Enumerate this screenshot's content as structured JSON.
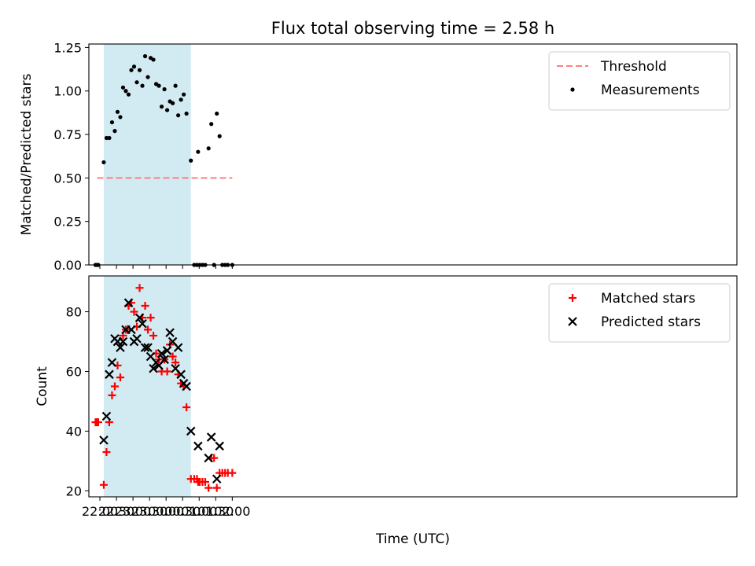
{
  "chart_data": {
    "title": "Flux total observing time = 2.58 h",
    "xlabel": "Time (UTC)",
    "x_tick_labels": [
      "22:00",
      "22:30",
      "23:00",
      "23:30",
      "00:00",
      "00:30",
      "01:00",
      "01:30",
      "02:00"
    ],
    "highlight_span": [
      "22:07",
      "00:45"
    ],
    "highlight_color": "#add8e6",
    "panels": [
      {
        "type": "scatter",
        "ylabel": "Matched/Predicted stars",
        "ylim": [
          0,
          1.27
        ],
        "y_tick_labels": [
          "0.00",
          "0.25",
          "0.50",
          "0.75",
          "1.00",
          "1.25"
        ],
        "legend_position": "upper right",
        "threshold": {
          "name": "Threshold",
          "value": 0.5,
          "x_range": [
            "21:55",
            "02:00"
          ],
          "color": "#ff7f7f",
          "style": "dashed"
        },
        "series": [
          {
            "name": "Measurements",
            "marker": "dot",
            "color": "#000000",
            "points": [
              [
                "21:52",
                0
              ],
              [
                "21:55",
                0
              ],
              [
                "21:57",
                0
              ],
              [
                "22:07",
                0.59
              ],
              [
                "22:12",
                0.73
              ],
              [
                "22:17",
                0.73
              ],
              [
                "22:22",
                0.82
              ],
              [
                "22:27",
                0.77
              ],
              [
                "22:32",
                0.88
              ],
              [
                "22:37",
                0.85
              ],
              [
                "22:42",
                1.02
              ],
              [
                "22:47",
                1.0
              ],
              [
                "22:52",
                0.98
              ],
              [
                "22:57",
                1.12
              ],
              [
                "23:02",
                1.14
              ],
              [
                "23:07",
                1.05
              ],
              [
                "23:12",
                1.12
              ],
              [
                "23:17",
                1.03
              ],
              [
                "23:22",
                1.2
              ],
              [
                "23:27",
                1.08
              ],
              [
                "23:32",
                1.19
              ],
              [
                "23:37",
                1.18
              ],
              [
                "23:42",
                1.04
              ],
              [
                "23:47",
                1.03
              ],
              [
                "23:52",
                0.91
              ],
              [
                "23:57",
                1.01
              ],
              [
                "00:02",
                0.89
              ],
              [
                "00:07",
                0.94
              ],
              [
                "00:12",
                0.93
              ],
              [
                "00:17",
                1.03
              ],
              [
                "00:22",
                0.86
              ],
              [
                "00:27",
                0.95
              ],
              [
                "00:32",
                0.98
              ],
              [
                "00:37",
                0.87
              ],
              [
                "00:45",
                0.6
              ],
              [
                "00:51",
                0
              ],
              [
                "00:56",
                0
              ],
              [
                "00:58",
                0.65
              ],
              [
                "01:01",
                0
              ],
              [
                "01:06",
                0
              ],
              [
                "01:11",
                0
              ],
              [
                "01:17",
                0.67
              ],
              [
                "01:22",
                0.81
              ],
              [
                "01:27",
                0
              ],
              [
                "01:32",
                0.87
              ],
              [
                "01:37",
                0.74
              ],
              [
                "01:42",
                0
              ],
              [
                "01:47",
                0
              ],
              [
                "01:52",
                0
              ],
              [
                "02:00",
                0
              ]
            ]
          }
        ]
      },
      {
        "type": "scatter",
        "ylabel": "Count",
        "ylim": [
          18,
          92
        ],
        "y_tick_labels": [
          "20",
          "40",
          "60",
          "80"
        ],
        "legend_position": "upper right",
        "series": [
          {
            "name": "Matched stars",
            "marker": "plus",
            "color": "#ff0000",
            "points": [
              [
                "21:52",
                43
              ],
              [
                "21:55",
                43
              ],
              [
                "21:57",
                43
              ],
              [
                "22:07",
                22
              ],
              [
                "22:12",
                33
              ],
              [
                "22:17",
                43
              ],
              [
                "22:22",
                52
              ],
              [
                "22:27",
                55
              ],
              [
                "22:32",
                62
              ],
              [
                "22:37",
                58
              ],
              [
                "22:42",
                72
              ],
              [
                "22:47",
                74
              ],
              [
                "22:52",
                82
              ],
              [
                "22:57",
                83
              ],
              [
                "23:02",
                80
              ],
              [
                "23:07",
                75
              ],
              [
                "23:12",
                88
              ],
              [
                "23:17",
                78
              ],
              [
                "23:22",
                82
              ],
              [
                "23:27",
                74
              ],
              [
                "23:32",
                78
              ],
              [
                "23:37",
                72
              ],
              [
                "23:42",
                66
              ],
              [
                "23:47",
                64
              ],
              [
                "23:52",
                60
              ],
              [
                "23:57",
                64
              ],
              [
                "00:02",
                60
              ],
              [
                "00:07",
                69
              ],
              [
                "00:12",
                65
              ],
              [
                "00:17",
                63
              ],
              [
                "00:22",
                59
              ],
              [
                "00:27",
                56
              ],
              [
                "00:32",
                55
              ],
              [
                "00:37",
                48
              ],
              [
                "00:45",
                24
              ],
              [
                "00:51",
                24
              ],
              [
                "00:56",
                24
              ],
              [
                "00:58",
                23
              ],
              [
                "01:01",
                23
              ],
              [
                "01:06",
                23
              ],
              [
                "01:11",
                23
              ],
              [
                "01:17",
                21
              ],
              [
                "01:22",
                31
              ],
              [
                "01:27",
                31
              ],
              [
                "01:32",
                21
              ],
              [
                "01:37",
                26
              ],
              [
                "01:42",
                26
              ],
              [
                "01:47",
                26
              ],
              [
                "01:52",
                26
              ],
              [
                "02:00",
                26
              ]
            ]
          },
          {
            "name": "Predicted stars",
            "marker": "x",
            "color": "#000000",
            "points": [
              [
                "22:07",
                37
              ],
              [
                "22:12",
                45
              ],
              [
                "22:17",
                59
              ],
              [
                "22:22",
                63
              ],
              [
                "22:27",
                71
              ],
              [
                "22:32",
                70
              ],
              [
                "22:37",
                68
              ],
              [
                "22:42",
                70
              ],
              [
                "22:47",
                74
              ],
              [
                "22:52",
                83
              ],
              [
                "22:57",
                74
              ],
              [
                "23:02",
                70
              ],
              [
                "23:07",
                71
              ],
              [
                "23:12",
                78
              ],
              [
                "23:17",
                76
              ],
              [
                "23:22",
                68
              ],
              [
                "23:27",
                68
              ],
              [
                "23:32",
                65
              ],
              [
                "23:37",
                61
              ],
              [
                "23:42",
                63
              ],
              [
                "23:47",
                62
              ],
              [
                "23:52",
                66
              ],
              [
                "23:57",
                64
              ],
              [
                "00:02",
                67
              ],
              [
                "00:07",
                73
              ],
              [
                "00:12",
                70
              ],
              [
                "00:17",
                61
              ],
              [
                "00:22",
                68
              ],
              [
                "00:27",
                59
              ],
              [
                "00:32",
                56
              ],
              [
                "00:37",
                55
              ],
              [
                "00:45",
                40
              ],
              [
                "00:58",
                35
              ],
              [
                "01:17",
                31
              ],
              [
                "01:22",
                38
              ],
              [
                "01:32",
                24
              ],
              [
                "01:37",
                35
              ]
            ]
          }
        ]
      }
    ]
  }
}
